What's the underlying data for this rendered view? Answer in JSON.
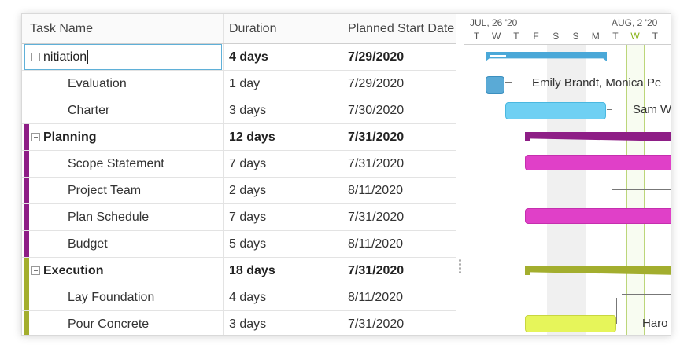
{
  "columns": [
    "Task Name",
    "Duration",
    "Planned Start Date"
  ],
  "rows": [
    {
      "name": "nitiation",
      "duration": "4 days",
      "start": "7/29/2020",
      "summary": true,
      "editing": true,
      "stripe": ""
    },
    {
      "name": "Evaluation",
      "duration": "1 day",
      "start": "7/29/2020",
      "summary": false,
      "stripe": ""
    },
    {
      "name": "Charter",
      "duration": "3 days",
      "start": "7/30/2020",
      "summary": false,
      "stripe": ""
    },
    {
      "name": "Planning",
      "duration": "12 days",
      "start": "7/31/2020",
      "summary": true,
      "stripe": "#8e1e86"
    },
    {
      "name": "Scope Statement",
      "duration": "7 days",
      "start": "7/31/2020",
      "summary": false,
      "stripe": "#8e1e86"
    },
    {
      "name": "Project Team",
      "duration": "2 days",
      "start": "8/11/2020",
      "summary": false,
      "stripe": "#8e1e86"
    },
    {
      "name": "Plan Schedule",
      "duration": "7 days",
      "start": "7/31/2020",
      "summary": false,
      "stripe": "#8e1e86"
    },
    {
      "name": "Budget",
      "duration": "5 days",
      "start": "8/11/2020",
      "summary": false,
      "stripe": "#8e1e86"
    },
    {
      "name": "Execution",
      "duration": "18 days",
      "start": "7/31/2020",
      "summary": true,
      "stripe": "#a3ae2e"
    },
    {
      "name": "Lay Foundation",
      "duration": "4 days",
      "start": "8/11/2020",
      "summary": false,
      "stripe": "#a3ae2e"
    },
    {
      "name": "Pour Concrete",
      "duration": "3 days",
      "start": "7/31/2020",
      "summary": false,
      "stripe": "#a3ae2e"
    }
  ],
  "timeline": {
    "weeks": [
      "JUL, 26 '20",
      "AUG, 2 '20"
    ],
    "days": [
      "T",
      "W",
      "T",
      "F",
      "S",
      "S",
      "M",
      "T",
      "W",
      "T"
    ],
    "today_index": 8
  },
  "resources": {
    "evaluation": "Emily Brandt, Monica Pe",
    "charter": "Sam W",
    "pour_concrete": "Haro"
  },
  "colors": {
    "initiation": "#4aa8d8",
    "evaluation": "#5aaad6",
    "charter": "#6fd0f3",
    "planning": "#8e1e86",
    "planning_task": "#e040c8",
    "execution": "#a3ae2e",
    "execution_task": "#e6f55a",
    "today": "#8cb520"
  }
}
